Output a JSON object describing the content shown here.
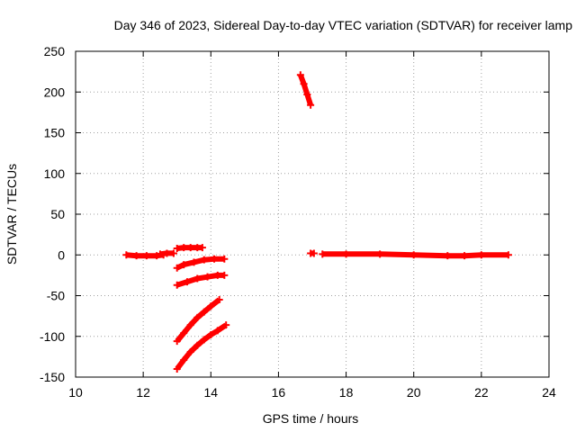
{
  "chart_data": {
    "type": "scatter",
    "title": "Day 346 of 2023, Sidereal Day-to-day VTEC variation (SDTVAR) for receiver lamp",
    "xlabel": "GPS time / hours",
    "ylabel": "SDTVAR / TECUs",
    "xlim": [
      10,
      24
    ],
    "ylim": [
      -150,
      250
    ],
    "xticks": [
      10,
      12,
      14,
      16,
      18,
      20,
      22,
      24
    ],
    "yticks": [
      -150,
      -100,
      -50,
      0,
      50,
      100,
      150,
      200,
      250
    ],
    "grid": true,
    "legend": "none",
    "marker_color": "#ff0000",
    "series": [
      {
        "name": "s1",
        "x": [
          11.5,
          11.8,
          12.1,
          12.4,
          12.6
        ],
        "y": [
          0,
          -1,
          -1,
          -1,
          0
        ]
      },
      {
        "name": "s2",
        "x": [
          12.5,
          12.7,
          12.9
        ],
        "y": [
          1,
          2,
          2
        ]
      },
      {
        "name": "s3",
        "x": [
          13.0,
          13.2,
          13.4,
          13.6,
          13.75
        ],
        "y": [
          8,
          9,
          9,
          9,
          9
        ]
      },
      {
        "name": "s4",
        "x": [
          13.0,
          13.2,
          13.5,
          13.8,
          14.1,
          14.4
        ],
        "y": [
          -16,
          -12,
          -9,
          -6,
          -5,
          -5
        ]
      },
      {
        "name": "s5",
        "x": [
          13.0,
          13.3,
          13.6,
          13.9,
          14.2,
          14.4
        ],
        "y": [
          -37,
          -33,
          -29,
          -27,
          -25,
          -25
        ]
      },
      {
        "name": "s6",
        "x": [
          13.0,
          13.2,
          13.4,
          13.6,
          13.8,
          14.0,
          14.25
        ],
        "y": [
          -106,
          -96,
          -86,
          -77,
          -70,
          -63,
          -55
        ]
      },
      {
        "name": "s7",
        "x": [
          13.0,
          13.2,
          13.4,
          13.6,
          13.8,
          14.0,
          14.2,
          14.45
        ],
        "y": [
          -140,
          -129,
          -119,
          -111,
          -104,
          -98,
          -93,
          -86
        ]
      },
      {
        "name": "s8",
        "x": [
          16.65,
          16.75,
          16.85,
          16.95
        ],
        "y": [
          221,
          210,
          197,
          184
        ]
      },
      {
        "name": "s9",
        "x": [
          16.95,
          17.05
        ],
        "y": [
          2,
          2
        ]
      },
      {
        "name": "s10",
        "x": [
          17.3,
          18.0,
          19.0,
          20.0,
          21.0,
          21.5,
          22.0,
          22.8
        ],
        "y": [
          1,
          1,
          1,
          0,
          -1,
          -1,
          0,
          0
        ]
      }
    ]
  }
}
